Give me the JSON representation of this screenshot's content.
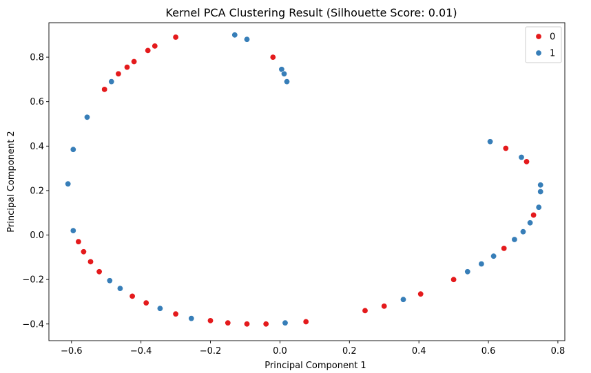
{
  "chart_data": {
    "type": "scatter",
    "title": "Kernel PCA Clustering Result (Silhouette Score: 0.01)",
    "xlabel": "Principal Component 1",
    "ylabel": "Principal Component 2",
    "xlim": [
      -0.665,
      0.82
    ],
    "ylim": [
      -0.475,
      0.955
    ],
    "xticks": [
      -0.6,
      -0.4,
      -0.2,
      0.0,
      0.2,
      0.4,
      0.6,
      0.8
    ],
    "xtick_labels": [
      "−0.6",
      "−0.4",
      "−0.2",
      "0.0",
      "0.2",
      "0.4",
      "0.6",
      "0.8"
    ],
    "yticks": [
      -0.4,
      -0.2,
      0.0,
      0.2,
      0.4,
      0.6,
      0.8
    ],
    "ytick_labels": [
      "−0.4",
      "−0.2",
      "0.0",
      "0.2",
      "0.4",
      "0.6",
      "0.8"
    ],
    "grid": false,
    "legend_position": "top-right",
    "series": [
      {
        "name": "0",
        "color": "#e41a1c",
        "points": [
          [
            -0.3,
            0.89
          ],
          [
            -0.36,
            0.85
          ],
          [
            -0.38,
            0.83
          ],
          [
            -0.42,
            0.78
          ],
          [
            -0.44,
            0.755
          ],
          [
            -0.465,
            0.725
          ],
          [
            -0.505,
            0.655
          ],
          [
            -0.02,
            0.8
          ],
          [
            0.65,
            0.39
          ],
          [
            0.71,
            0.33
          ],
          [
            0.73,
            0.09
          ],
          [
            0.645,
            -0.06
          ],
          [
            0.5,
            -0.2
          ],
          [
            0.405,
            -0.265
          ],
          [
            0.3,
            -0.32
          ],
          [
            0.245,
            -0.34
          ],
          [
            0.075,
            -0.39
          ],
          [
            -0.04,
            -0.4
          ],
          [
            -0.095,
            -0.4
          ],
          [
            -0.15,
            -0.395
          ],
          [
            -0.2,
            -0.385
          ],
          [
            -0.3,
            -0.355
          ],
          [
            -0.385,
            -0.305
          ],
          [
            -0.425,
            -0.275
          ],
          [
            -0.52,
            -0.165
          ],
          [
            -0.545,
            -0.12
          ],
          [
            -0.565,
            -0.075
          ],
          [
            -0.58,
            -0.03
          ]
        ]
      },
      {
        "name": "1",
        "color": "#377eb8",
        "points": [
          [
            -0.13,
            0.9
          ],
          [
            -0.095,
            0.88
          ],
          [
            0.005,
            0.745
          ],
          [
            0.012,
            0.725
          ],
          [
            0.02,
            0.69
          ],
          [
            -0.485,
            0.69
          ],
          [
            -0.555,
            0.53
          ],
          [
            -0.595,
            0.385
          ],
          [
            -0.61,
            0.23
          ],
          [
            -0.595,
            0.02
          ],
          [
            -0.49,
            -0.205
          ],
          [
            -0.46,
            -0.24
          ],
          [
            -0.345,
            -0.33
          ],
          [
            -0.255,
            -0.375
          ],
          [
            0.015,
            -0.395
          ],
          [
            0.355,
            -0.29
          ],
          [
            0.54,
            -0.165
          ],
          [
            0.58,
            -0.13
          ],
          [
            0.615,
            -0.095
          ],
          [
            0.675,
            -0.02
          ],
          [
            0.7,
            0.015
          ],
          [
            0.72,
            0.055
          ],
          [
            0.745,
            0.125
          ],
          [
            0.75,
            0.195
          ],
          [
            0.75,
            0.225
          ],
          [
            0.695,
            0.35
          ],
          [
            0.605,
            0.42
          ]
        ]
      }
    ]
  }
}
